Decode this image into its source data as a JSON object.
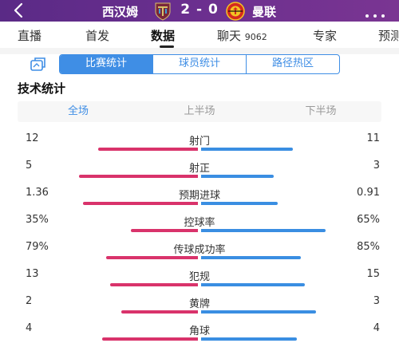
{
  "header": {
    "back_icon": "back-arrow-icon",
    "home_team": "西汉姆",
    "away_team": "曼联",
    "score": "2 - 0",
    "home_crest_icon": "west-ham-crest-icon",
    "away_crest_icon": "man-utd-crest-icon",
    "more_icon": "more-dots-icon",
    "color": "#5a2a86"
  },
  "tabs": [
    {
      "label": "直播"
    },
    {
      "label": "首发"
    },
    {
      "label": "数据"
    },
    {
      "label": "聊天",
      "count": "9062"
    },
    {
      "label": "专家"
    },
    {
      "label": "预测"
    }
  ],
  "active_tab": "数据",
  "stats_toggle": {
    "share_icon": "share-card-icon",
    "options": [
      "比赛统计",
      "球员统计",
      "路径热区"
    ],
    "active": "比赛统计",
    "accent": "#3f8ee5"
  },
  "section_title": "技术统计",
  "periods": [
    "全场",
    "上半场",
    "下半场"
  ],
  "active_period": "全场",
  "colors": {
    "home": "#d9336b",
    "away": "#3a8ee2"
  },
  "stats": [
    {
      "name": "射门",
      "home": "12",
      "away": "11",
      "home_share": 0.52,
      "away_share": 0.48
    },
    {
      "name": "射正",
      "home": "5",
      "away": "3",
      "home_share": 0.62,
      "away_share": 0.38
    },
    {
      "name": "预期进球",
      "home": "1.36",
      "away": "0.91",
      "home_share": 0.6,
      "away_share": 0.4
    },
    {
      "name": "控球率",
      "home": "35%",
      "away": "65%",
      "home_share": 0.35,
      "away_share": 0.65
    },
    {
      "name": "传球成功率",
      "home": "79%",
      "away": "85%",
      "home_share": 0.48,
      "away_share": 0.52
    },
    {
      "name": "犯规",
      "home": "13",
      "away": "15",
      "home_share": 0.46,
      "away_share": 0.54
    },
    {
      "name": "黄牌",
      "home": "2",
      "away": "3",
      "home_share": 0.4,
      "away_share": 0.6
    },
    {
      "name": "角球",
      "home": "4",
      "away": "4",
      "home_share": 0.5,
      "away_share": 0.5
    }
  ]
}
